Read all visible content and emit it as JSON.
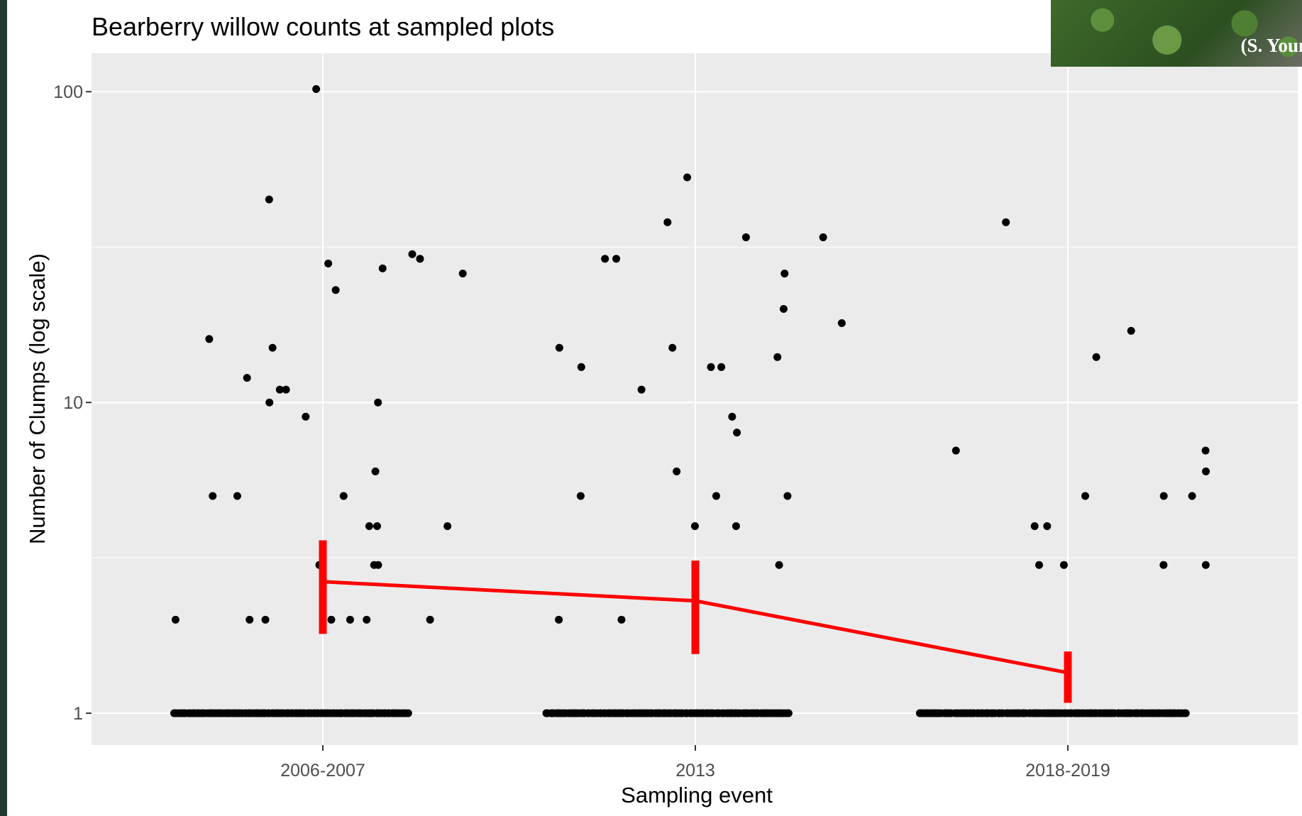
{
  "photo": {
    "caption": "(S. Youn",
    "icon": "bearberry-willow-photo"
  },
  "chart_data": {
    "type": "scatter",
    "title": "Bearberry willow counts at sampled plots",
    "xlabel": "Sampling event",
    "ylabel": "Number of Clumps (log scale)",
    "y_scale": "log",
    "ylim": [
      0.79,
      133
    ],
    "categories": [
      "2006-2007",
      "2013",
      "2018-2019"
    ],
    "y_ticks": [
      1,
      10,
      100
    ],
    "y_tick_labels": [
      "1",
      "10",
      "100"
    ],
    "grid": true,
    "background": "#ebebeb",
    "point_color": "#000000",
    "summary_color": "#ff0000",
    "points": [
      {
        "x": "2006-2007",
        "y": [
          1,
          1,
          1,
          1,
          1,
          1,
          1,
          1,
          1,
          1,
          1,
          1,
          1,
          1,
          1,
          1,
          1,
          1,
          1,
          1,
          1,
          1,
          1,
          1,
          1,
          1,
          1,
          1,
          1,
          1,
          1,
          1,
          1,
          1,
          1,
          1,
          1,
          1,
          1,
          1,
          1,
          1,
          1,
          1,
          1,
          1,
          1,
          1,
          1,
          1,
          1,
          1,
          1,
          1,
          1,
          1,
          1,
          1,
          1,
          1,
          1,
          1,
          1,
          1,
          1,
          1,
          1,
          1,
          1,
          1,
          1,
          1,
          1,
          1,
          1,
          1,
          1,
          1,
          1,
          1,
          1,
          1,
          1,
          1,
          1,
          1,
          1,
          1,
          1,
          1,
          1,
          1,
          1,
          1,
          1,
          1,
          1,
          1,
          1,
          1,
          1,
          1,
          1,
          1,
          1,
          1,
          1,
          1,
          1,
          1,
          1,
          1,
          1,
          1,
          1,
          1,
          1,
          1,
          1,
          1,
          2,
          2,
          2,
          2,
          2,
          2,
          2,
          3,
          3,
          3,
          4,
          4,
          4,
          5,
          5,
          5,
          6,
          9,
          10,
          10,
          11,
          11,
          12,
          15,
          16,
          23,
          26,
          27,
          28,
          29,
          30,
          45,
          102
        ]
      },
      {
        "x": "2013",
        "y": [
          1,
          1,
          1,
          1,
          1,
          1,
          1,
          1,
          1,
          1,
          1,
          1,
          1,
          1,
          1,
          1,
          1,
          1,
          1,
          1,
          1,
          1,
          1,
          1,
          1,
          1,
          1,
          1,
          1,
          1,
          1,
          1,
          1,
          1,
          1,
          1,
          1,
          1,
          1,
          1,
          1,
          1,
          1,
          1,
          1,
          1,
          1,
          1,
          1,
          1,
          1,
          1,
          1,
          1,
          1,
          1,
          1,
          1,
          1,
          1,
          1,
          1,
          1,
          1,
          1,
          1,
          1,
          1,
          1,
          1,
          1,
          1,
          1,
          1,
          1,
          1,
          1,
          1,
          1,
          1,
          1,
          1,
          1,
          1,
          1,
          1,
          1,
          1,
          1,
          1,
          1,
          1,
          1,
          1,
          1,
          1,
          1,
          1,
          1,
          1,
          1,
          1,
          1,
          1,
          1,
          1,
          1,
          1,
          1,
          1,
          1,
          1,
          1,
          1,
          1,
          1,
          1,
          1,
          1,
          1,
          2,
          2,
          3,
          4,
          4,
          5,
          5,
          5,
          6,
          8,
          9,
          11,
          13,
          13,
          13,
          14,
          15,
          15,
          18,
          20,
          26,
          29,
          29,
          34,
          34,
          38,
          53
        ]
      },
      {
        "x": "2018-2019",
        "y": [
          1,
          1,
          1,
          1,
          1,
          1,
          1,
          1,
          1,
          1,
          1,
          1,
          1,
          1,
          1,
          1,
          1,
          1,
          1,
          1,
          1,
          1,
          1,
          1,
          1,
          1,
          1,
          1,
          1,
          1,
          1,
          1,
          1,
          1,
          1,
          1,
          1,
          1,
          1,
          1,
          1,
          1,
          1,
          1,
          1,
          1,
          1,
          1,
          1,
          1,
          1,
          1,
          1,
          1,
          1,
          1,
          1,
          1,
          1,
          1,
          1,
          1,
          1,
          1,
          1,
          1,
          1,
          1,
          1,
          1,
          1,
          1,
          1,
          1,
          1,
          1,
          1,
          1,
          1,
          1,
          1,
          1,
          1,
          1,
          1,
          1,
          1,
          1,
          1,
          1,
          1,
          1,
          1,
          1,
          1,
          1,
          1,
          1,
          1,
          1,
          1,
          1,
          1,
          1,
          1,
          1,
          1,
          1,
          1,
          1,
          1,
          1,
          1,
          1,
          1,
          1,
          1,
          1,
          1,
          1,
          1,
          1,
          1,
          1,
          1,
          1,
          1,
          1,
          1,
          1,
          3,
          3,
          3,
          3,
          4,
          4,
          5,
          5,
          5,
          6,
          7,
          7,
          14,
          17,
          38
        ]
      }
    ],
    "summary": [
      {
        "x": "2006-2007",
        "mean": 2.65,
        "lower": 1.8,
        "upper": 3.6
      },
      {
        "x": "2013",
        "mean": 2.3,
        "lower": 1.55,
        "upper": 3.1
      },
      {
        "x": "2018-2019",
        "mean": 1.35,
        "lower": 1.08,
        "upper": 1.58
      }
    ]
  }
}
